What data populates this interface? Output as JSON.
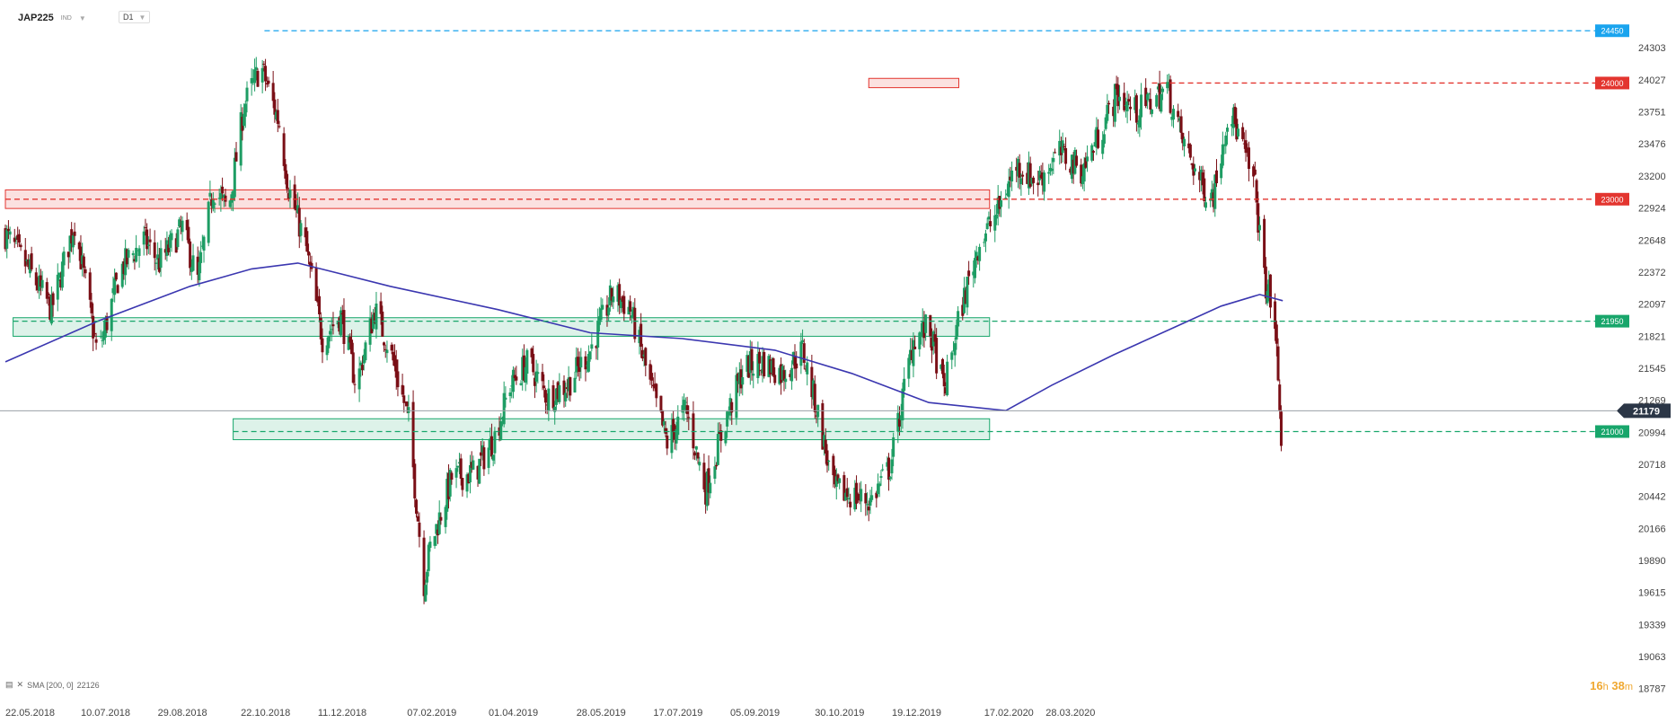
{
  "header": {
    "symbol": "JAP225",
    "type": "IND",
    "timeframe": "D1"
  },
  "legend": {
    "indicator": "SMA [200, 0]",
    "value": "22126"
  },
  "timer": {
    "hours": "16",
    "h": "h",
    "minutes": "38",
    "m": "m"
  },
  "colors": {
    "up": "#1e9d64",
    "down": "#7a0f16",
    "sma": "#3b37b0",
    "resistance": "#e3352f",
    "support": "#18a66b",
    "top": "#1aa4ee",
    "price": "#2b3646"
  },
  "chart_data": {
    "type": "candlestick",
    "symbol": "JAP225",
    "timeframe": "D1",
    "y_ticks": [
      24303,
      24027,
      23751,
      23476,
      23200,
      22924,
      22648,
      22372,
      22097,
      21821,
      21545,
      21269,
      20994,
      20718,
      20442,
      20166,
      19890,
      19615,
      19339,
      19063,
      18787
    ],
    "x_ticks": [
      "22.05.2018",
      "10.07.2018",
      "29.08.2018",
      "22.10.2018",
      "11.12.2018",
      "07.02.2019",
      "01.04.2019",
      "28.05.2019",
      "17.07.2019",
      "05.09.2019",
      "30.10.2019",
      "19.12.2019",
      "17.02.2020",
      "28.03.2020"
    ],
    "ylim": [
      18700,
      24560
    ],
    "current_price": 21179,
    "levels": [
      {
        "value": 24450,
        "label": "24450",
        "kind": "top"
      },
      {
        "value": 24000,
        "label": "24000",
        "kind": "resistance"
      },
      {
        "value": 23000,
        "label": "23000",
        "kind": "resistance"
      },
      {
        "value": 21950,
        "label": "21950",
        "kind": "support"
      },
      {
        "value": 21000,
        "label": "21000",
        "kind": "support"
      }
    ],
    "zones": [
      {
        "from": 22920,
        "to": 23080,
        "kind": "resistance",
        "x_start": "22.05.2018",
        "x_end": "17.02.2020"
      },
      {
        "from": 23960,
        "to": 24040,
        "kind": "resistance",
        "x_start": "04.12.2019",
        "x_end": "28.01.2020"
      },
      {
        "from": 21820,
        "to": 21980,
        "kind": "support",
        "x_start": "27.05.2018",
        "x_end": "17.02.2020"
      },
      {
        "from": 20930,
        "to": 21110,
        "kind": "support",
        "x_start": "17.10.2018",
        "x_end": "17.02.2020"
      }
    ],
    "anchors": [
      {
        "d": 0,
        "c": 22700
      },
      {
        "d": 15,
        "c": 22400
      },
      {
        "d": 30,
        "c": 22050
      },
      {
        "d": 45,
        "c": 22800
      },
      {
        "d": 60,
        "c": 21650
      },
      {
        "d": 75,
        "c": 22400
      },
      {
        "d": 90,
        "c": 22650
      },
      {
        "d": 100,
        "c": 22450
      },
      {
        "d": 115,
        "c": 22750
      },
      {
        "d": 125,
        "c": 22300
      },
      {
        "d": 135,
        "c": 23100
      },
      {
        "d": 145,
        "c": 22900
      },
      {
        "d": 155,
        "c": 23800
      },
      {
        "d": 166,
        "c": 24150
      },
      {
        "d": 178,
        "c": 23650
      },
      {
        "d": 184,
        "c": 23100
      },
      {
        "d": 195,
        "c": 22600
      },
      {
        "d": 206,
        "c": 21800
      },
      {
        "d": 218,
        "c": 22000
      },
      {
        "d": 228,
        "c": 21400
      },
      {
        "d": 240,
        "c": 22050
      },
      {
        "d": 250,
        "c": 21700
      },
      {
        "d": 262,
        "c": 21100
      },
      {
        "d": 272,
        "c": 19700
      },
      {
        "d": 276,
        "c": 20000
      },
      {
        "d": 290,
        "c": 20600
      },
      {
        "d": 305,
        "c": 20650
      },
      {
        "d": 318,
        "c": 20950
      },
      {
        "d": 328,
        "c": 21400
      },
      {
        "d": 340,
        "c": 21600
      },
      {
        "d": 352,
        "c": 21300
      },
      {
        "d": 365,
        "c": 21400
      },
      {
        "d": 380,
        "c": 21700
      },
      {
        "d": 395,
        "c": 22200
      },
      {
        "d": 406,
        "c": 22050
      },
      {
        "d": 418,
        "c": 21450
      },
      {
        "d": 430,
        "c": 20900
      },
      {
        "d": 442,
        "c": 21200
      },
      {
        "d": 455,
        "c": 20500
      },
      {
        "d": 468,
        "c": 21100
      },
      {
        "d": 480,
        "c": 21550
      },
      {
        "d": 492,
        "c": 21600
      },
      {
        "d": 505,
        "c": 21500
      },
      {
        "d": 518,
        "c": 21700
      },
      {
        "d": 528,
        "c": 21150
      },
      {
        "d": 538,
        "c": 20500
      },
      {
        "d": 550,
        "c": 20450
      },
      {
        "d": 562,
        "c": 20400
      },
      {
        "d": 575,
        "c": 20700
      },
      {
        "d": 590,
        "c": 21800
      },
      {
        "d": 600,
        "c": 21900
      },
      {
        "d": 610,
        "c": 21350
      },
      {
        "d": 620,
        "c": 22000
      },
      {
        "d": 632,
        "c": 22600
      },
      {
        "d": 645,
        "c": 22900
      },
      {
        "d": 657,
        "c": 23300
      },
      {
        "d": 670,
        "c": 23150
      },
      {
        "d": 685,
        "c": 23400
      },
      {
        "d": 700,
        "c": 23250
      },
      {
        "d": 712,
        "c": 23600
      },
      {
        "d": 722,
        "c": 23900
      },
      {
        "d": 735,
        "c": 23750
      },
      {
        "d": 745,
        "c": 23850
      },
      {
        "d": 755,
        "c": 23950
      },
      {
        "d": 765,
        "c": 23500
      },
      {
        "d": 778,
        "c": 23100
      },
      {
        "d": 785,
        "c": 23050
      },
      {
        "d": 795,
        "c": 23800
      },
      {
        "d": 805,
        "c": 23400
      },
      {
        "d": 812,
        "c": 23100
      },
      {
        "d": 818,
        "c": 22300
      },
      {
        "d": 822,
        "c": 22150
      },
      {
        "d": 826,
        "c": 21700
      },
      {
        "d": 829,
        "c": 20950
      },
      {
        "d": 830,
        "c": 21179
      }
    ],
    "sma": [
      {
        "d": 0,
        "v": 21600
      },
      {
        "d": 60,
        "v": 21950
      },
      {
        "d": 120,
        "v": 22250
      },
      {
        "d": 160,
        "v": 22400
      },
      {
        "d": 190,
        "v": 22450
      },
      {
        "d": 250,
        "v": 22250
      },
      {
        "d": 320,
        "v": 22050
      },
      {
        "d": 380,
        "v": 21850
      },
      {
        "d": 440,
        "v": 21800
      },
      {
        "d": 500,
        "v": 21700
      },
      {
        "d": 550,
        "v": 21500
      },
      {
        "d": 600,
        "v": 21250
      },
      {
        "d": 650,
        "v": 21180
      },
      {
        "d": 680,
        "v": 21400
      },
      {
        "d": 720,
        "v": 21660
      },
      {
        "d": 760,
        "v": 21900
      },
      {
        "d": 790,
        "v": 22080
      },
      {
        "d": 815,
        "v": 22180
      },
      {
        "d": 830,
        "v": 22126
      }
    ]
  }
}
